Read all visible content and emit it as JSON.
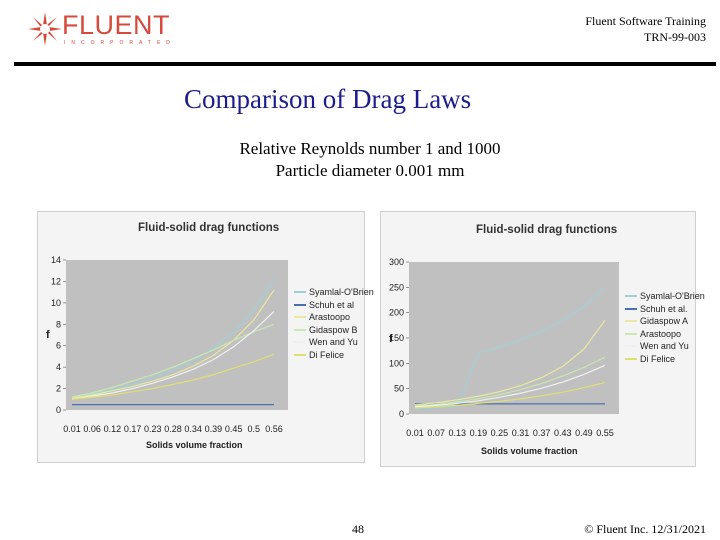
{
  "header": {
    "logo_text": "FLUENT",
    "logo_subtext": "INCORPORATED",
    "training_line1": "Fluent Software Training",
    "training_line2": "TRN-99-003"
  },
  "slide": {
    "title": "Comparison of Drag Laws",
    "subtitle_line1": "Relative Reynolds number 1 and 1000",
    "subtitle_line2": "Particle diameter 0.001 mm"
  },
  "footer": {
    "page_number": "48",
    "copyright": "© Fluent Inc. 12/31/2021"
  },
  "colors": {
    "title": "#1c1c8c",
    "logo": "#d64a3c",
    "plot_background": "#c0c0c0"
  },
  "chart_data": [
    {
      "type": "line",
      "title": "Fluid-solid drag functions",
      "xlabel": "Solids volume fraction",
      "ylabel": "f",
      "ylim": [
        0,
        14
      ],
      "yticks": [
        "0",
        "2",
        "4",
        "6",
        "8",
        "10",
        "12",
        "14"
      ],
      "categories": [
        "0.01",
        "0.06",
        "0.12",
        "0.17",
        "0.23",
        "0.28",
        "0.34",
        "0.39",
        "0.45",
        "0.5",
        "0.56"
      ],
      "legend": [
        "Syamlal-O'Brien",
        "Schuh et al",
        "Arastoopo",
        "Gidaspow B",
        "Wen and Yu",
        "Di Felice"
      ],
      "series": [
        {
          "name": "Syamlal-O'Brien",
          "color": "#9fd0d8",
          "values": [
            1.2,
            1.5,
            1.9,
            2.4,
            3.0,
            3.7,
            4.6,
            5.8,
            7.3,
            9.3,
            12.2
          ]
        },
        {
          "name": "Schuh et al",
          "color": "#4a6fb0",
          "values": [
            0.5,
            0.5,
            0.5,
            0.5,
            0.5,
            0.5,
            0.5,
            0.5,
            0.5,
            0.5,
            0.5
          ]
        },
        {
          "name": "Arastoopo",
          "color": "#e8e8a0",
          "values": [
            1.1,
            1.4,
            1.8,
            2.2,
            2.7,
            3.3,
            4.1,
            5.1,
            6.5,
            8.4,
            11.2
          ]
        },
        {
          "name": "Gidaspow B",
          "color": "#c8e8b0",
          "values": [
            1.2,
            1.6,
            2.1,
            2.7,
            3.3,
            4.0,
            4.8,
            5.6,
            6.5,
            7.3,
            8.0
          ]
        },
        {
          "name": "Wen and Yu",
          "color": "#f0f0f0",
          "values": [
            1.0,
            1.3,
            1.6,
            2.0,
            2.5,
            3.1,
            3.8,
            4.7,
            5.9,
            7.4,
            9.2
          ]
        },
        {
          "name": "Di Felice",
          "color": "#e0e070",
          "values": [
            1.0,
            1.2,
            1.4,
            1.7,
            2.0,
            2.4,
            2.8,
            3.3,
            3.9,
            4.5,
            5.2
          ]
        }
      ]
    },
    {
      "type": "line",
      "title": "Fluid-solid drag functions",
      "xlabel": "Solids volume fraction",
      "ylabel": "f",
      "ylim": [
        0,
        300
      ],
      "yticks": [
        "0",
        "50",
        "100",
        "150",
        "200",
        "250",
        "300"
      ],
      "categories": [
        "0.01",
        "0.07",
        "0.13",
        "0.19",
        "0.25",
        "0.31",
        "0.37",
        "0.43",
        "0.49",
        "0.55"
      ],
      "legend": [
        "Syamlal-O'Brien",
        "Schuh et al.",
        "Gidaspow A",
        "Arastoopo",
        "Wen and Yu",
        "Di Felice"
      ],
      "series": [
        {
          "name": "Syamlal-O'Brien",
          "color": "#9fd0d8",
          "values": [
            10,
            12,
            15,
            120,
            132,
            146,
            163,
            185,
            212,
            250
          ]
        },
        {
          "name": "Schuh et al.",
          "color": "#4a6fb0",
          "values": [
            20,
            20,
            20,
            20,
            20,
            20,
            20,
            20,
            20,
            20
          ]
        },
        {
          "name": "Gidaspow A",
          "color": "#e8e8a0",
          "values": [
            18,
            22,
            28,
            35,
            44,
            56,
            72,
            94,
            128,
            185
          ]
        },
        {
          "name": "Arastoopo",
          "color": "#c8e8b0",
          "values": [
            15,
            19,
            24,
            30,
            38,
            48,
            60,
            75,
            92,
            112
          ]
        },
        {
          "name": "Wen and Yu",
          "color": "#f0f0f0",
          "values": [
            14,
            17,
            21,
            26,
            33,
            41,
            51,
            63,
            78,
            96
          ]
        },
        {
          "name": "Di Felice",
          "color": "#e0e070",
          "values": [
            12,
            14,
            17,
            21,
            25,
            30,
            36,
            43,
            52,
            62
          ]
        }
      ]
    }
  ]
}
